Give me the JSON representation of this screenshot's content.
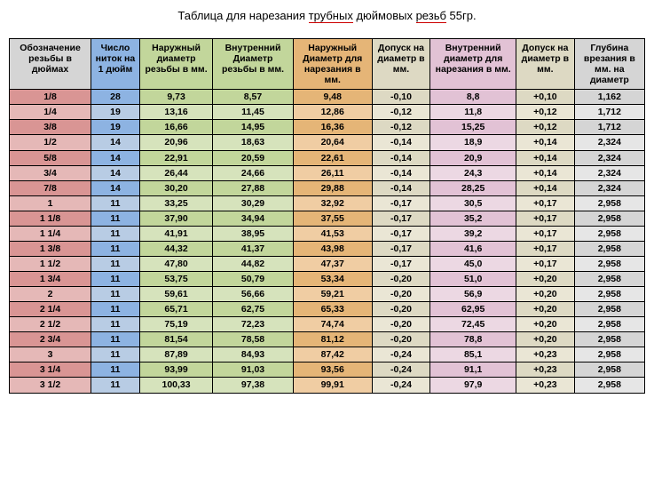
{
  "title_parts": {
    "pre": "Таблица для нарезания ",
    "u1": "трубных",
    "mid": " дюймовых ",
    "u2": "резьб",
    "post": " 55гр."
  },
  "table": {
    "columns": [
      "Обозначение резьбы в дюймах",
      "Число ниток на 1 дюйм",
      "Наружный диаметр резьбы в мм.",
      "Внутренний Диаметр резьбы в мм.",
      "Наружный Диаметр для нарезания в мм.",
      "Допуск на диаметр в мм.",
      "Внутренний диаметр для нарезания в мм.",
      "Допуск на диаметр в мм.",
      "Глубина врезания в мм. на диаметр"
    ],
    "header_bg": [
      "#d5d5d5",
      "#8db3e2",
      "#c2d69b",
      "#c2d69b",
      "#e5b577",
      "#ddd9c3",
      "#e2c2d5",
      "#ddd9c3",
      "#d5d5d5"
    ],
    "body_bg_a": [
      "#d99594",
      "#8db3e2",
      "#c2d69b",
      "#c2d69b",
      "#e5b577",
      "#ddd9c3",
      "#e2c2d5",
      "#ddd9c3",
      "#d5d5d5"
    ],
    "body_bg_b": [
      "#e5b8b7",
      "#b8cce4",
      "#d6e3bc",
      "#d6e3bc",
      "#f0cda3",
      "#eae6d5",
      "#ecd8e3",
      "#eae6d5",
      "#e6e6e6"
    ],
    "rows": [
      [
        "1/8",
        "28",
        "9,73",
        "8,57",
        "9,48",
        "-0,10",
        "8,8",
        "+0,10",
        "1,162"
      ],
      [
        "1/4",
        "19",
        "13,16",
        "11,45",
        "12,86",
        "-0,12",
        "11,8",
        "+0,12",
        "1,712"
      ],
      [
        "3/8",
        "19",
        "16,66",
        "14,95",
        "16,36",
        "-0,12",
        "15,25",
        "+0,12",
        "1,712"
      ],
      [
        "1/2",
        "14",
        "20,96",
        "18,63",
        "20,64",
        "-0,14",
        "18,9",
        "+0,14",
        "2,324"
      ],
      [
        "5/8",
        "14",
        "22,91",
        "20,59",
        "22,61",
        "-0,14",
        "20,9",
        "+0,14",
        "2,324"
      ],
      [
        "3/4",
        "14",
        "26,44",
        "24,66",
        "26,11",
        "-0,14",
        "24,3",
        "+0,14",
        "2,324"
      ],
      [
        "7/8",
        "14",
        "30,20",
        "27,88",
        "29,88",
        "-0,14",
        "28,25",
        "+0,14",
        "2,324"
      ],
      [
        "1",
        "11",
        "33,25",
        "30,29",
        "32,92",
        "-0,17",
        "30,5",
        "+0,17",
        "2,958"
      ],
      [
        "1 1/8",
        "11",
        "37,90",
        "34,94",
        "37,55",
        "-0,17",
        "35,2",
        "+0,17",
        "2,958"
      ],
      [
        "1 1/4",
        "11",
        "41,91",
        "38,95",
        "41,53",
        "-0,17",
        "39,2",
        "+0,17",
        "2,958"
      ],
      [
        "1 3/8",
        "11",
        "44,32",
        "41,37",
        "43,98",
        "-0,17",
        "41,6",
        "+0,17",
        "2,958"
      ],
      [
        "1 1/2",
        "11",
        "47,80",
        "44,82",
        "47,37",
        "-0,17",
        "45,0",
        "+0,17",
        "2,958"
      ],
      [
        "1 3/4",
        "11",
        "53,75",
        "50,79",
        "53,34",
        "-0,20",
        "51,0",
        "+0,20",
        "2,958"
      ],
      [
        "2",
        "11",
        "59,61",
        "56,66",
        "59,21",
        "-0,20",
        "56,9",
        "+0,20",
        "2,958"
      ],
      [
        "2 1/4",
        "11",
        "65,71",
        "62,75",
        "65,33",
        "-0,20",
        "62,95",
        "+0,20",
        "2,958"
      ],
      [
        "2 1/2",
        "11",
        "75,19",
        "72,23",
        "74,74",
        "-0,20",
        "72,45",
        "+0,20",
        "2,958"
      ],
      [
        "2 3/4",
        "11",
        "81,54",
        "78,58",
        "81,12",
        "-0,20",
        "78,8",
        "+0,20",
        "2,958"
      ],
      [
        "3",
        "11",
        "87,89",
        "84,93",
        "87,42",
        "-0,24",
        "85,1",
        "+0,23",
        "2,958"
      ],
      [
        "3 1/4",
        "11",
        "93,99",
        "91,03",
        "93,56",
        "-0,24",
        "91,1",
        "+0,23",
        "2,958"
      ],
      [
        "3 1/2",
        "11",
        "100,33",
        "97,38",
        "99,91",
        "-0,24",
        "97,9",
        "+0,23",
        "2,958"
      ]
    ]
  }
}
